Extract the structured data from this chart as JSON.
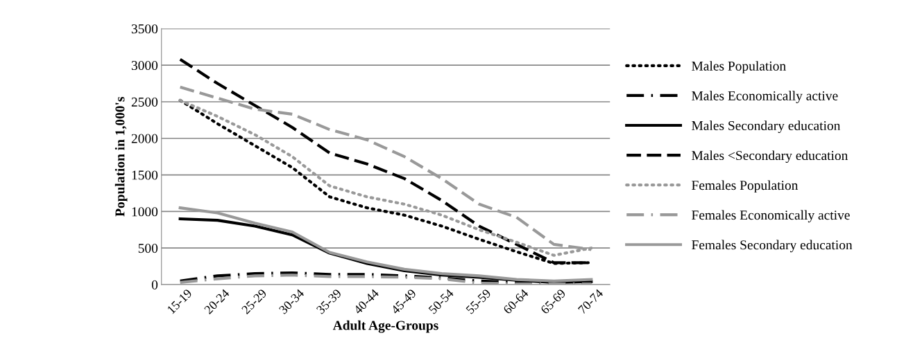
{
  "chart_data": {
    "type": "line",
    "xlabel": "Adult Age-Groups",
    "ylabel": "Population in 1,000's",
    "categories": [
      "15-19",
      "20-24",
      "25-29",
      "30-34",
      "35-39",
      "40-44",
      "45-49",
      "50-54",
      "55-59",
      "60-64",
      "65-69",
      "70-74"
    ],
    "ylim": [
      0,
      3500
    ],
    "yticks": [
      0,
      500,
      1000,
      1500,
      2000,
      2500,
      3000,
      3500
    ],
    "grid": "y",
    "legend": "right",
    "marker": "none",
    "series": [
      {
        "name": "Males Population",
        "color": "#000000",
        "line_style": "dotted",
        "values": [
          2520,
          2200,
          1900,
          1600,
          1200,
          1050,
          950,
          800,
          620,
          450,
          290,
          300
        ]
      },
      {
        "name": "Males Economically active",
        "color": "#000000",
        "line_style": "dashdot",
        "values": [
          50,
          120,
          150,
          160,
          140,
          140,
          120,
          90,
          50,
          30,
          20,
          30
        ]
      },
      {
        "name": "Males Secondary education",
        "color": "#000000",
        "line_style": "solid",
        "values": [
          900,
          880,
          800,
          680,
          430,
          290,
          190,
          130,
          100,
          60,
          30,
          40
        ]
      },
      {
        "name": "Males <Secondary education",
        "color": "#000000",
        "line_style": "dashed",
        "values": [
          3080,
          2750,
          2450,
          2150,
          1800,
          1650,
          1450,
          1150,
          800,
          550,
          300,
          300
        ]
      },
      {
        "name": "Females Population",
        "color": "#999999",
        "line_style": "dotted",
        "values": [
          2520,
          2300,
          2050,
          1750,
          1350,
          1200,
          1100,
          950,
          750,
          580,
          400,
          500
        ]
      },
      {
        "name": "Females Economically active",
        "color": "#999999",
        "line_style": "dashdot",
        "values": [
          30,
          80,
          120,
          130,
          110,
          110,
          100,
          80,
          20,
          10,
          10,
          10
        ]
      },
      {
        "name": "Females Secondary education",
        "color": "#999999",
        "line_style": "solid",
        "values": [
          1050,
          980,
          840,
          720,
          440,
          310,
          210,
          150,
          120,
          70,
          50,
          70
        ]
      },
      {
        "color": "#999999",
        "line_style": "dashed",
        "values": [
          2700,
          2550,
          2400,
          2330,
          2120,
          1980,
          1750,
          1450,
          1100,
          920,
          550,
          480
        ]
      }
    ]
  }
}
